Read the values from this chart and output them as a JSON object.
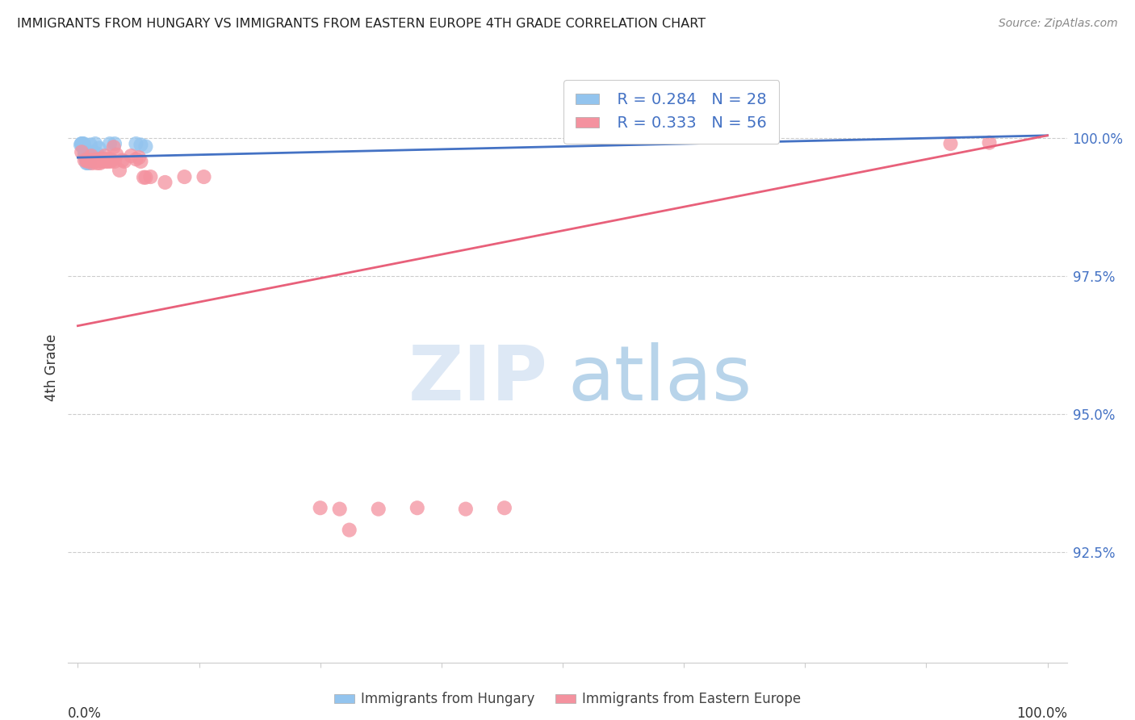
{
  "title": "IMMIGRANTS FROM HUNGARY VS IMMIGRANTS FROM EASTERN EUROPE 4TH GRADE CORRELATION CHART",
  "source": "Source: ZipAtlas.com",
  "ylabel": "4th Grade",
  "y_tick_labels": [
    "100.0%",
    "97.5%",
    "95.0%",
    "92.5%"
  ],
  "y_tick_values": [
    100.0,
    97.5,
    95.0,
    92.5
  ],
  "x_range": [
    0.0,
    100.0
  ],
  "y_range": [
    90.5,
    101.2
  ],
  "blue_color": "#93C4EE",
  "pink_color": "#F4929F",
  "blue_line_color": "#4472C4",
  "pink_line_color": "#E8607A",
  "legend_blue_R": "R = 0.284",
  "legend_blue_N": "N = 28",
  "legend_pink_R": "R = 0.333",
  "legend_pink_N": "N = 56",
  "blue_line_x": [
    0.0,
    100.0
  ],
  "blue_line_y": [
    99.65,
    100.05
  ],
  "pink_line_x": [
    0.0,
    100.0
  ],
  "pink_line_y": [
    96.6,
    100.05
  ],
  "blue_x": [
    0.3,
    0.4,
    0.4,
    0.5,
    0.5,
    0.5,
    0.6,
    0.6,
    0.6,
    0.7,
    0.7,
    0.8,
    0.8,
    0.9,
    1.0,
    1.1,
    1.2,
    1.3,
    1.5,
    1.6,
    1.8,
    2.0,
    2.2,
    3.3,
    3.8,
    6.0,
    6.5,
    7.0
  ],
  "blue_y": [
    99.88,
    99.9,
    99.9,
    99.85,
    99.88,
    99.9,
    99.85,
    99.88,
    99.9,
    99.68,
    99.75,
    99.68,
    99.72,
    99.55,
    99.55,
    99.72,
    99.55,
    99.88,
    99.72,
    99.75,
    99.9,
    99.72,
    99.82,
    99.9,
    99.9,
    99.9,
    99.88,
    99.85
  ],
  "pink_x": [
    0.4,
    0.7,
    0.9,
    1.0,
    1.2,
    1.3,
    1.4,
    1.5,
    1.5,
    1.6,
    1.7,
    1.8,
    1.9,
    2.0,
    2.0,
    2.1,
    2.2,
    2.3,
    2.4,
    2.5,
    2.5,
    2.6,
    2.7,
    2.8,
    2.9,
    3.0,
    3.1,
    3.2,
    3.3,
    3.4,
    3.5,
    3.7,
    3.8,
    4.0,
    4.3,
    4.6,
    4.8,
    5.5,
    6.0,
    6.3,
    6.5,
    6.8,
    7.0,
    7.5,
    9.0,
    11.0,
    13.0,
    25.0,
    27.0,
    28.0,
    31.0,
    35.0,
    40.0,
    44.0,
    90.0,
    94.0
  ],
  "pink_y": [
    99.75,
    99.6,
    99.6,
    99.58,
    99.6,
    99.6,
    99.68,
    99.55,
    99.6,
    99.58,
    99.6,
    99.6,
    99.6,
    99.55,
    99.6,
    99.6,
    99.62,
    99.55,
    99.6,
    99.63,
    99.58,
    99.6,
    99.6,
    99.68,
    99.58,
    99.62,
    99.58,
    99.6,
    99.62,
    99.58,
    99.6,
    99.84,
    99.58,
    99.7,
    99.42,
    99.6,
    99.58,
    99.68,
    99.62,
    99.65,
    99.58,
    99.29,
    99.29,
    99.3,
    99.2,
    99.3,
    99.3,
    93.3,
    93.28,
    92.9,
    93.28,
    93.3,
    93.28,
    93.3,
    99.9,
    99.92
  ]
}
